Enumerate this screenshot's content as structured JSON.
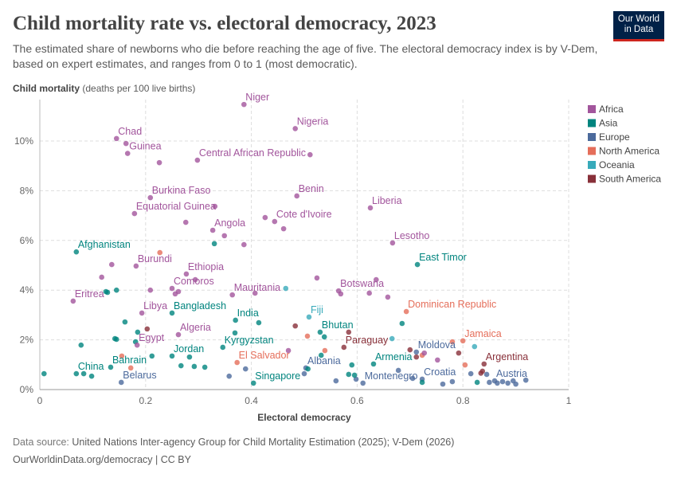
{
  "title": "Child mortality rate vs. electoral democracy, 2023",
  "subtitle": "The estimated share of newborns who die before reaching the age of five. The electoral democracy index is by V-Dem, based on expert estimates, and ranges from 0 to 1 (most democratic).",
  "logo": "Our World in Data",
  "y_axis_title": "Child mortality",
  "y_axis_unit": "(deaths per 100 live births)",
  "footer": {
    "source_label": "Data source:",
    "source": "United Nations Inter-agency Group for Child Mortality Estimation (2025); V-Dem (2026)",
    "license": "OurWorldinData.org/democracy | CC BY"
  },
  "chart_data": {
    "type": "scatter",
    "xlabel": "Electoral democracy",
    "ylabel": "Child mortality (deaths per 100 live births)",
    "xlim": [
      0,
      1
    ],
    "ylim": [
      0,
      11.5
    ],
    "xticks": [
      "0",
      "0.2",
      "0.4",
      "0.6",
      "0.8",
      "1"
    ],
    "yticks": [
      "0%",
      "2%",
      "4%",
      "6%",
      "8%",
      "10%"
    ],
    "grid": true,
    "legend_placement": "right",
    "legend": [
      {
        "name": "Africa",
        "color": "#a2559c"
      },
      {
        "name": "Asia",
        "color": "#00847e"
      },
      {
        "name": "Europe",
        "color": "#4c6a9c"
      },
      {
        "name": "North America",
        "color": "#e56e5a"
      },
      {
        "name": "Oceania",
        "color": "#38aaba"
      },
      {
        "name": "South America",
        "color": "#883039"
      }
    ],
    "points": [
      {
        "label": "Niger",
        "region": "Africa",
        "x": 0.386,
        "y": 11.47
      },
      {
        "label": "Nigeria",
        "region": "Africa",
        "x": 0.483,
        "y": 10.5
      },
      {
        "label": "Chad",
        "region": "Africa",
        "x": 0.145,
        "y": 10.1
      },
      {
        "label": "",
        "region": "Africa",
        "x": 0.163,
        "y": 9.9
      },
      {
        "label": "Guinea",
        "region": "Africa",
        "x": 0.166,
        "y": 9.5
      },
      {
        "label": "",
        "region": "Africa",
        "x": 0.226,
        "y": 9.13
      },
      {
        "label": "Central African Republic",
        "region": "Africa",
        "x": 0.298,
        "y": 9.23
      },
      {
        "label": "",
        "region": "Africa",
        "x": 0.511,
        "y": 9.45
      },
      {
        "label": "Burkina Faso",
        "region": "Africa",
        "x": 0.209,
        "y": 7.72
      },
      {
        "label": "Benin",
        "region": "Africa",
        "x": 0.486,
        "y": 7.79
      },
      {
        "label": "Equatorial Guinea",
        "region": "Africa",
        "x": 0.179,
        "y": 7.08
      },
      {
        "label": "",
        "region": "Africa",
        "x": 0.331,
        "y": 7.37
      },
      {
        "label": "Liberia",
        "region": "Africa",
        "x": 0.625,
        "y": 7.31
      },
      {
        "label": "",
        "region": "Africa",
        "x": 0.276,
        "y": 6.73
      },
      {
        "label": "Angola",
        "region": "Africa",
        "x": 0.327,
        "y": 6.41
      },
      {
        "label": "",
        "region": "Africa",
        "x": 0.349,
        "y": 6.19
      },
      {
        "label": "",
        "region": "Africa",
        "x": 0.426,
        "y": 6.92
      },
      {
        "label": "Cote d'Ivoire",
        "region": "Africa",
        "x": 0.444,
        "y": 6.76
      },
      {
        "label": "",
        "region": "Africa",
        "x": 0.461,
        "y": 6.47
      },
      {
        "label": "",
        "region": "Africa",
        "x": 0.386,
        "y": 5.83
      },
      {
        "label": "Afghanistan",
        "region": "Asia",
        "x": 0.069,
        "y": 5.54
      },
      {
        "label": "",
        "region": "Asia",
        "x": 0.33,
        "y": 5.87
      },
      {
        "label": "",
        "region": "North America",
        "x": 0.227,
        "y": 5.51
      },
      {
        "label": "Lesotho",
        "region": "Africa",
        "x": 0.667,
        "y": 5.9
      },
      {
        "label": "Burundi",
        "region": "Africa",
        "x": 0.182,
        "y": 4.97
      },
      {
        "label": "",
        "region": "Africa",
        "x": 0.136,
        "y": 5.03
      },
      {
        "label": "East Timor",
        "region": "Asia",
        "x": 0.714,
        "y": 5.03
      },
      {
        "label": "Ethiopia",
        "region": "Africa",
        "x": 0.277,
        "y": 4.65
      },
      {
        "label": "",
        "region": "Africa",
        "x": 0.117,
        "y": 4.52
      },
      {
        "label": "",
        "region": "Africa",
        "x": 0.294,
        "y": 4.42
      },
      {
        "label": "",
        "region": "Asia",
        "x": 0.125,
        "y": 3.94
      },
      {
        "label": "",
        "region": "Asia",
        "x": 0.128,
        "y": 3.91
      },
      {
        "label": "",
        "region": "Asia",
        "x": 0.145,
        "y": 4.0
      },
      {
        "label": "",
        "region": "Africa",
        "x": 0.209,
        "y": 4.0
      },
      {
        "label": "Comoros",
        "region": "Africa",
        "x": 0.25,
        "y": 4.07
      },
      {
        "label": "",
        "region": "Africa",
        "x": 0.262,
        "y": 3.94
      },
      {
        "label": "",
        "region": "Africa",
        "x": 0.256,
        "y": 3.85
      },
      {
        "label": "Eritrea",
        "region": "Africa",
        "x": 0.063,
        "y": 3.56
      },
      {
        "label": "Mauritania",
        "region": "Africa",
        "x": 0.364,
        "y": 3.81
      },
      {
        "label": "",
        "region": "Africa",
        "x": 0.407,
        "y": 3.88
      },
      {
        "label": "",
        "region": "Oceania",
        "x": 0.465,
        "y": 4.07
      },
      {
        "label": "",
        "region": "Africa",
        "x": 0.524,
        "y": 4.49
      },
      {
        "label": "Botswana",
        "region": "Africa",
        "x": 0.565,
        "y": 3.97
      },
      {
        "label": "",
        "region": "Africa",
        "x": 0.569,
        "y": 3.85
      },
      {
        "label": "",
        "region": "Africa",
        "x": 0.636,
        "y": 4.42
      },
      {
        "label": "",
        "region": "Africa",
        "x": 0.623,
        "y": 3.88
      },
      {
        "label": "",
        "region": "Africa",
        "x": 0.658,
        "y": 3.72
      },
      {
        "label": "Libya",
        "region": "Africa",
        "x": 0.193,
        "y": 3.08
      },
      {
        "label": "Bangladesh",
        "region": "Asia",
        "x": 0.25,
        "y": 3.08
      },
      {
        "label": "India",
        "region": "Asia",
        "x": 0.37,
        "y": 2.79
      },
      {
        "label": "",
        "region": "Asia",
        "x": 0.414,
        "y": 2.69
      },
      {
        "label": "",
        "region": "Asia",
        "x": 0.161,
        "y": 2.72
      },
      {
        "label": "",
        "region": "South America",
        "x": 0.203,
        "y": 2.44
      },
      {
        "label": "",
        "region": "Asia",
        "x": 0.185,
        "y": 2.31
      },
      {
        "label": "Algeria",
        "region": "Africa",
        "x": 0.262,
        "y": 2.21
      },
      {
        "label": "",
        "region": "Asia",
        "x": 0.369,
        "y": 2.28
      },
      {
        "label": "",
        "region": "South America",
        "x": 0.483,
        "y": 2.56
      },
      {
        "label": "Fiji",
        "region": "Oceania",
        "x": 0.509,
        "y": 2.92
      },
      {
        "label": "Bhutan",
        "region": "Asia",
        "x": 0.53,
        "y": 2.31
      },
      {
        "label": "",
        "region": "Asia",
        "x": 0.538,
        "y": 2.12
      },
      {
        "label": "",
        "region": "North America",
        "x": 0.506,
        "y": 2.15
      },
      {
        "label": "",
        "region": "Asia",
        "x": 0.685,
        "y": 2.66
      },
      {
        "label": "Dominican Republic",
        "region": "North America",
        "x": 0.693,
        "y": 3.14
      },
      {
        "label": "",
        "region": "South America",
        "x": 0.584,
        "y": 2.31
      },
      {
        "label": "Paraguay",
        "region": "South America",
        "x": 0.575,
        "y": 1.7
      },
      {
        "label": "",
        "region": "Oceania",
        "x": 0.666,
        "y": 2.05
      },
      {
        "label": "Jamaica",
        "region": "North America",
        "x": 0.8,
        "y": 1.96
      },
      {
        "label": "",
        "region": "North America",
        "x": 0.78,
        "y": 1.92
      },
      {
        "label": "",
        "region": "Oceania",
        "x": 0.822,
        "y": 1.73
      },
      {
        "label": "",
        "region": "Asia",
        "x": 0.142,
        "y": 2.05
      },
      {
        "label": "",
        "region": "Asia",
        "x": 0.145,
        "y": 2.02
      },
      {
        "label": "",
        "region": "Asia",
        "x": 0.078,
        "y": 1.79
      },
      {
        "label": "",
        "region": "Asia",
        "x": 0.181,
        "y": 1.92
      },
      {
        "label": "Egypt",
        "region": "Africa",
        "x": 0.184,
        "y": 1.79
      },
      {
        "label": "Kyrgyzstan",
        "region": "Asia",
        "x": 0.346,
        "y": 1.7
      },
      {
        "label": "",
        "region": "Africa",
        "x": 0.47,
        "y": 1.57
      },
      {
        "label": "",
        "region": "South America",
        "x": 0.7,
        "y": 1.6
      },
      {
        "label": "",
        "region": "South America",
        "x": 0.712,
        "y": 1.31
      },
      {
        "label": "Moldova",
        "region": "Europe",
        "x": 0.712,
        "y": 1.51
      },
      {
        "label": "",
        "region": "North America",
        "x": 0.723,
        "y": 1.38
      },
      {
        "label": "",
        "region": "Africa",
        "x": 0.727,
        "y": 1.47
      },
      {
        "label": "",
        "region": "Africa",
        "x": 0.752,
        "y": 1.19
      },
      {
        "label": "",
        "region": "South America",
        "x": 0.792,
        "y": 1.47
      },
      {
        "label": "",
        "region": "North America",
        "x": 0.804,
        "y": 0.99
      },
      {
        "label": "Argentina",
        "region": "South America",
        "x": 0.84,
        "y": 1.03
      },
      {
        "label": "",
        "region": "South America",
        "x": 0.837,
        "y": 0.74
      },
      {
        "label": "",
        "region": "South America",
        "x": 0.834,
        "y": 0.66
      },
      {
        "label": "",
        "region": "Europe",
        "x": 0.815,
        "y": 0.64
      },
      {
        "label": "Armenia",
        "region": "Asia",
        "x": 0.631,
        "y": 1.03
      },
      {
        "label": "",
        "region": "Asia",
        "x": 0.59,
        "y": 0.99
      },
      {
        "label": "",
        "region": "Asia",
        "x": 0.532,
        "y": 1.38
      },
      {
        "label": "",
        "region": "North America",
        "x": 0.539,
        "y": 1.57
      },
      {
        "label": "Jordan",
        "region": "Asia",
        "x": 0.25,
        "y": 1.35
      },
      {
        "label": "",
        "region": "Asia",
        "x": 0.283,
        "y": 1.31
      },
      {
        "label": "",
        "region": "Asia",
        "x": 0.212,
        "y": 1.35
      },
      {
        "label": "El Salvador",
        "region": "North America",
        "x": 0.373,
        "y": 1.09
      },
      {
        "label": "Bahrain",
        "region": "Asia",
        "x": 0.134,
        "y": 0.9
      },
      {
        "label": "",
        "region": "North America",
        "x": 0.172,
        "y": 0.87
      },
      {
        "label": "",
        "region": "North America",
        "x": 0.155,
        "y": 1.35
      },
      {
        "label": "",
        "region": "Asia",
        "x": 0.267,
        "y": 0.96
      },
      {
        "label": "",
        "region": "Asia",
        "x": 0.292,
        "y": 0.93
      },
      {
        "label": "",
        "region": "Asia",
        "x": 0.312,
        "y": 0.9
      },
      {
        "label": "China",
        "region": "Asia",
        "x": 0.069,
        "y": 0.64
      },
      {
        "label": "",
        "region": "Asia",
        "x": 0.083,
        "y": 0.64
      },
      {
        "label": "",
        "region": "Asia",
        "x": 0.098,
        "y": 0.54
      },
      {
        "label": "",
        "region": "Asia",
        "x": 0.008,
        "y": 0.64
      },
      {
        "label": "Belarus",
        "region": "Europe",
        "x": 0.154,
        "y": 0.29
      },
      {
        "label": "",
        "region": "Europe",
        "x": 0.389,
        "y": 0.83
      },
      {
        "label": "",
        "region": "Europe",
        "x": 0.358,
        "y": 0.54
      },
      {
        "label": "Singapore",
        "region": "Asia",
        "x": 0.404,
        "y": 0.26
      },
      {
        "label": "Albania",
        "region": "Europe",
        "x": 0.503,
        "y": 0.87
      },
      {
        "label": "",
        "region": "Asia",
        "x": 0.507,
        "y": 0.83
      },
      {
        "label": "",
        "region": "Europe",
        "x": 0.5,
        "y": 0.64
      },
      {
        "label": "Montenegro",
        "region": "Europe",
        "x": 0.611,
        "y": 0.26
      },
      {
        "label": "",
        "region": "Europe",
        "x": 0.56,
        "y": 0.35
      },
      {
        "label": "",
        "region": "Europe",
        "x": 0.598,
        "y": 0.42
      },
      {
        "label": "",
        "region": "Asia",
        "x": 0.584,
        "y": 0.61
      },
      {
        "label": "",
        "region": "Asia",
        "x": 0.595,
        "y": 0.58
      },
      {
        "label": "Croatia",
        "region": "Europe",
        "x": 0.723,
        "y": 0.42
      },
      {
        "label": "",
        "region": "Europe",
        "x": 0.678,
        "y": 0.77
      },
      {
        "label": "",
        "region": "Europe",
        "x": 0.705,
        "y": 0.45
      },
      {
        "label": "",
        "region": "Asia",
        "x": 0.723,
        "y": 0.29
      },
      {
        "label": "",
        "region": "Europe",
        "x": 0.762,
        "y": 0.22
      },
      {
        "label": "",
        "region": "Europe",
        "x": 0.78,
        "y": 0.32
      },
      {
        "label": "",
        "region": "Asia",
        "x": 0.827,
        "y": 0.29
      },
      {
        "label": "",
        "region": "Europe",
        "x": 0.845,
        "y": 0.61
      },
      {
        "label": "Austria",
        "region": "Europe",
        "x": 0.86,
        "y": 0.35
      },
      {
        "label": "",
        "region": "Europe",
        "x": 0.85,
        "y": 0.29
      },
      {
        "label": "",
        "region": "Europe",
        "x": 0.865,
        "y": 0.26
      },
      {
        "label": "",
        "region": "Europe",
        "x": 0.875,
        "y": 0.32
      },
      {
        "label": "",
        "region": "Europe",
        "x": 0.885,
        "y": 0.26
      },
      {
        "label": "",
        "region": "Europe",
        "x": 0.895,
        "y": 0.35
      },
      {
        "label": "",
        "region": "Europe",
        "x": 0.9,
        "y": 0.22
      },
      {
        "label": "",
        "region": "Europe",
        "x": 0.919,
        "y": 0.38
      }
    ]
  }
}
